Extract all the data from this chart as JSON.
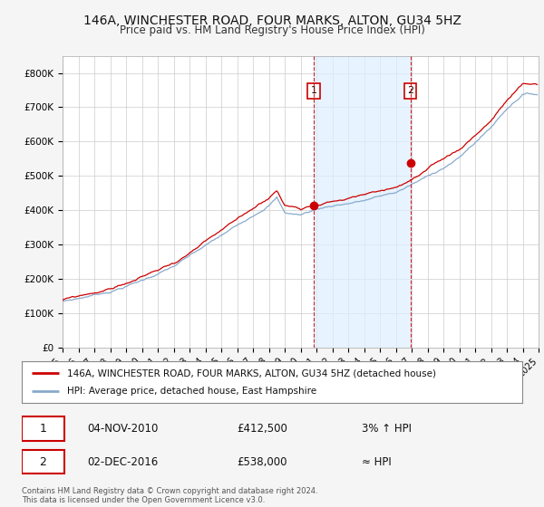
{
  "title": "146A, WINCHESTER ROAD, FOUR MARKS, ALTON, GU34 5HZ",
  "subtitle": "Price paid vs. HM Land Registry's House Price Index (HPI)",
  "ylim": [
    0,
    850000
  ],
  "yticks": [
    0,
    100000,
    200000,
    300000,
    400000,
    500000,
    600000,
    700000,
    800000
  ],
  "ytick_labels": [
    "£0",
    "£100K",
    "£200K",
    "£300K",
    "£400K",
    "£500K",
    "£600K",
    "£700K",
    "£800K"
  ],
  "line1_color": "#cc0000",
  "line2_color": "#88aacc",
  "fill_color": "#ddeeff",
  "marker1_value": 412500,
  "marker2_value": 538000,
  "purchase1_date": "04-NOV-2010",
  "purchase1_price": "£412,500",
  "purchase1_vs": "3% ↑ HPI",
  "purchase2_date": "02-DEC-2016",
  "purchase2_price": "£538,000",
  "purchase2_vs": "≈ HPI",
  "legend1_label": "146A, WINCHESTER ROAD, FOUR MARKS, ALTON, GU34 5HZ (detached house)",
  "legend2_label": "HPI: Average price, detached house, East Hampshire",
  "copyright": "Contains HM Land Registry data © Crown copyright and database right 2024.\nThis data is licensed under the Open Government Licence v3.0.",
  "bg_color": "#f5f5f5",
  "plot_bg_color": "#ffffff",
  "title_fontsize": 10,
  "subtitle_fontsize": 8.5,
  "start_year": 1995,
  "end_year": 2025,
  "n_years": 30
}
